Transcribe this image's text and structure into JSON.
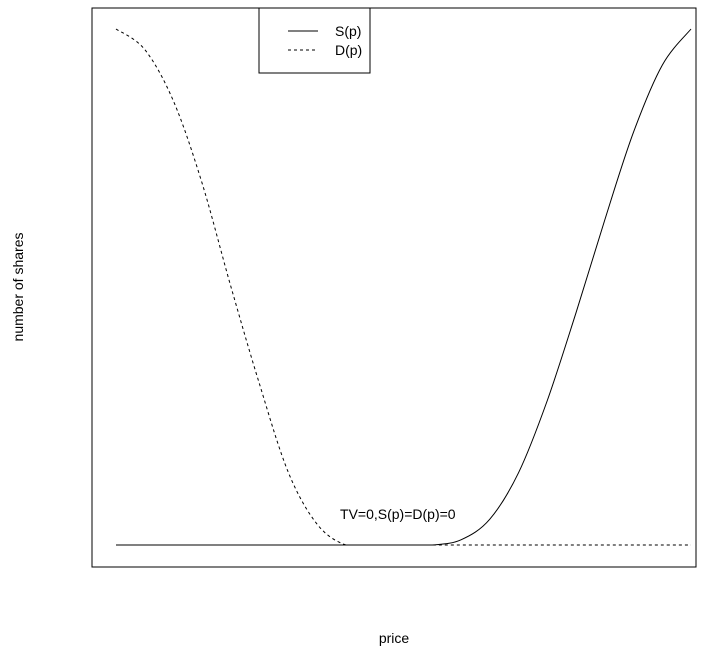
{
  "chart_data": {
    "type": "line",
    "title": "",
    "xlabel": "price",
    "ylabel": "number of shares",
    "xlim": [
      0,
      1
    ],
    "ylim": [
      0,
      1
    ],
    "grid": false,
    "legend_position": "top-center",
    "x": [
      0.0,
      0.05,
      0.1,
      0.15,
      0.2,
      0.25,
      0.3,
      0.35,
      0.4,
      0.45,
      0.5,
      0.55,
      0.6,
      0.65,
      0.7,
      0.75,
      0.8,
      0.85,
      0.9,
      0.95,
      1.0
    ],
    "series": [
      {
        "name": "S(p)",
        "line_style": "solid",
        "values": [
          0,
          0,
          0,
          0,
          0,
          0,
          0,
          0,
          0,
          0,
          0,
          0,
          0.01,
          0.05,
          0.14,
          0.28,
          0.45,
          0.63,
          0.8,
          0.93,
          1.0
        ]
      },
      {
        "name": "D(p)",
        "line_style": "dashed",
        "values": [
          1.0,
          0.96,
          0.86,
          0.7,
          0.5,
          0.31,
          0.14,
          0.04,
          0.0,
          0,
          0,
          0,
          0,
          0,
          0,
          0,
          0,
          0,
          0,
          0,
          0
        ]
      }
    ],
    "annotations": [
      {
        "text": "TV=0,S(p)=D(p)=0",
        "x": 0.49,
        "y": 0.05
      }
    ]
  }
}
